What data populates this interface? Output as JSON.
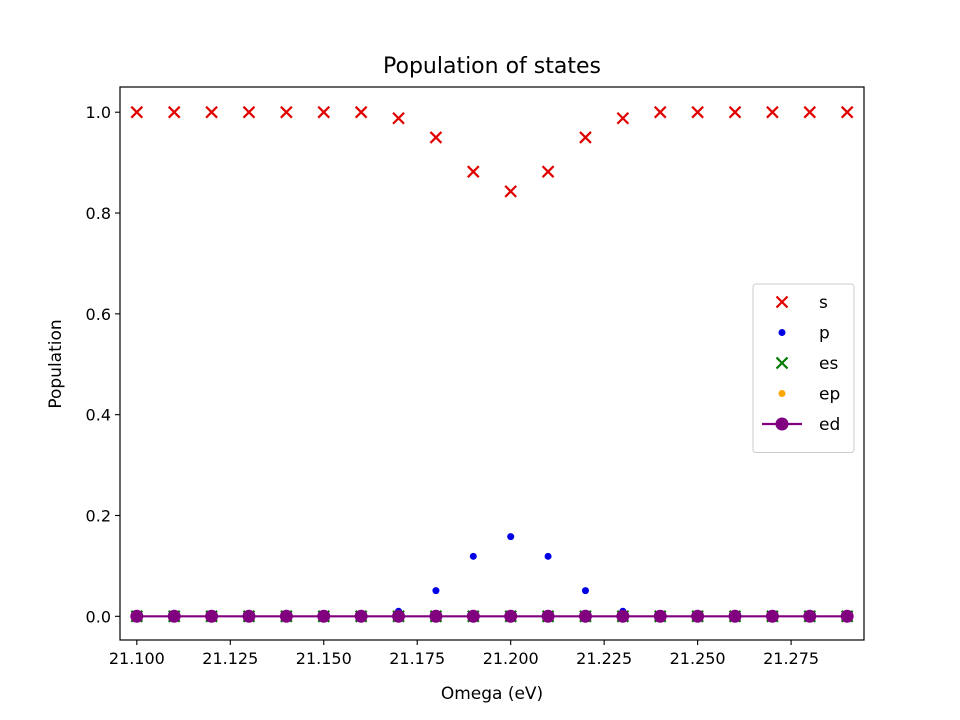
{
  "chart_data": {
    "type": "scatter",
    "title": "Population of states",
    "xlabel": "Omega (eV)",
    "ylabel": "Population",
    "xlim": [
      21.0955,
      21.2945
    ],
    "ylim": [
      -0.047,
      1.05
    ],
    "xticks": [
      21.1,
      21.125,
      21.15,
      21.175,
      21.2,
      21.225,
      21.25,
      21.275
    ],
    "xtick_labels": [
      "21.100",
      "21.125",
      "21.150",
      "21.175",
      "21.200",
      "21.225",
      "21.250",
      "21.275"
    ],
    "yticks": [
      0.0,
      0.2,
      0.4,
      0.6,
      0.8,
      1.0
    ],
    "ytick_labels": [
      "0.0",
      "0.2",
      "0.4",
      "0.6",
      "0.8",
      "1.0"
    ],
    "grid": false,
    "legend_position": "center-right",
    "x": [
      21.1,
      21.11,
      21.12,
      21.13,
      21.14,
      21.15,
      21.16,
      21.17,
      21.18,
      21.19,
      21.2,
      21.21,
      21.22,
      21.23,
      21.24,
      21.25,
      21.26,
      21.27,
      21.28,
      21.29
    ],
    "series": [
      {
        "name": "s",
        "marker": "x",
        "color": "#e00000",
        "values": [
          1.0,
          1.0,
          1.0,
          1.0,
          1.0,
          1.0,
          1.0,
          0.988,
          0.95,
          0.882,
          0.843,
          0.882,
          0.95,
          0.988,
          1.0,
          1.0,
          1.0,
          1.0,
          1.0,
          1.0
        ]
      },
      {
        "name": "p",
        "marker": "dot",
        "color": "#0000e6",
        "values": [
          0.0,
          0.0,
          0.0,
          0.0,
          0.0,
          0.0,
          0.0,
          0.01,
          0.051,
          0.119,
          0.158,
          0.119,
          0.051,
          0.01,
          0.0,
          0.0,
          0.0,
          0.0,
          0.0,
          0.0
        ]
      },
      {
        "name": "es",
        "marker": "x",
        "color": "#007a00",
        "values": [
          0.0,
          0.0,
          0.0,
          0.0,
          0.0,
          0.0,
          0.0,
          0.0,
          0.0,
          0.0,
          0.0,
          0.0,
          0.0,
          0.0,
          0.0,
          0.0,
          0.0,
          0.0,
          0.0,
          0.0
        ]
      },
      {
        "name": "ep",
        "marker": "dot",
        "color": "#ffa500",
        "values": [
          0.0,
          0.0,
          0.0,
          0.0,
          0.0,
          0.0,
          0.0,
          0.0,
          0.0,
          0.0,
          0.0,
          0.0,
          0.0,
          0.0,
          0.0,
          0.0,
          0.0,
          0.0,
          0.0,
          0.0
        ]
      },
      {
        "name": "ed",
        "marker": "line-circle",
        "color": "#800080",
        "values": [
          0.0,
          0.0,
          0.0,
          0.0,
          0.0,
          0.0,
          0.0,
          0.0,
          0.0,
          0.0,
          0.0,
          0.0,
          0.0,
          0.0,
          0.0,
          0.0,
          0.0,
          0.0,
          0.0,
          0.0
        ]
      }
    ]
  }
}
